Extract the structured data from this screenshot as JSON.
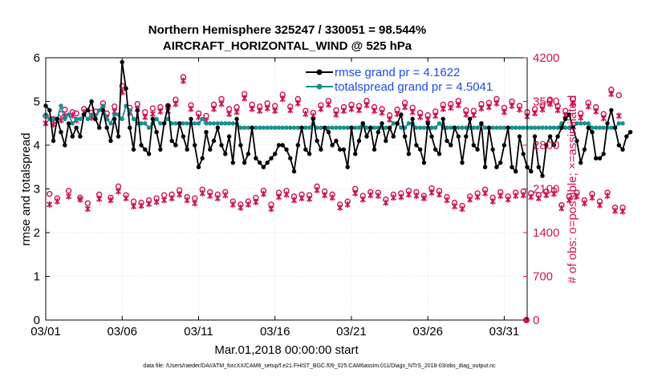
{
  "chart_data": {
    "type": "line",
    "title_line1": "Northern Hemisphere 325247 / 330051 = 98.544%",
    "title_line2": "AIRCRAFT_HORIZONTAL_WIND @ 525 hPa",
    "xlabel": "Mar.01,2018 00:00:00 start",
    "ylabel_left": "rmse and totalspread",
    "ylabel_right": "# of obs: o=possible; ×=assimilated",
    "footer": "data file: /Users/raeder/DAI/ATM_forcXX/CAM6_setup/f.e21.FHIST_BGC.f09_025.CAM6assim.011/Diags_NTrS_2018-03/obs_diag_output.nc",
    "xlim_days": [
      0,
      31.5
    ],
    "ylim_left": [
      0,
      6
    ],
    "ylim_right": [
      0,
      4200
    ],
    "x_ticks": [
      {
        "day": 0,
        "label": "03/01"
      },
      {
        "day": 5,
        "label": "03/06"
      },
      {
        "day": 10,
        "label": "03/11"
      },
      {
        "day": 15,
        "label": "03/16"
      },
      {
        "day": 20,
        "label": "03/21"
      },
      {
        "day": 25,
        "label": "03/26"
      },
      {
        "day": 30,
        "label": "03/31"
      }
    ],
    "y_ticks_left": [
      "0",
      "1",
      "2",
      "3",
      "4",
      "5",
      "6"
    ],
    "y_ticks_right": [
      "0",
      "700",
      "1400",
      "2100",
      "2800",
      "3500",
      "4200"
    ],
    "colors": {
      "rmse": "#000000",
      "spread": "#159090",
      "obs": "#cc1155",
      "legend_text": "#1a4de6"
    },
    "series": [
      {
        "name": "rmse",
        "legend": "rmse grand pr = 4.1622",
        "start_day": 0.0,
        "step_days": 0.25,
        "values": [
          4.9,
          4.8,
          4.1,
          4.6,
          4.3,
          4.0,
          4.5,
          4.2,
          4.4,
          4.2,
          4.7,
          4.8,
          5.0,
          4.6,
          4.4,
          4.8,
          4.4,
          4.1,
          4.6,
          4.2,
          5.9,
          5.3,
          4.4,
          3.9,
          4.8,
          4.0,
          3.9,
          3.8,
          4.6,
          4.3,
          3.9,
          4.5,
          4.9,
          4.1,
          4.0,
          4.5,
          4.2,
          3.9,
          4.6,
          4.0,
          3.5,
          3.7,
          4.3,
          3.9,
          4.1,
          4.4,
          4.0,
          3.8,
          4.2,
          3.6,
          4.6,
          4.0,
          3.6,
          3.8,
          4.4,
          3.7,
          3.6,
          3.5,
          3.6,
          3.7,
          3.8,
          4.0,
          4.0,
          3.9,
          3.7,
          3.4,
          4.0,
          4.4,
          3.9,
          3.8,
          4.6,
          4.1,
          3.9,
          4.4,
          4.3,
          4.0,
          4.1,
          3.9,
          3.9,
          3.5,
          4.4,
          3.8,
          4.1,
          4.5,
          4.2,
          4.4,
          3.9,
          4.3,
          4.5,
          4.1,
          4.4,
          4.2,
          4.5,
          4.7,
          4.2,
          3.8,
          4.6,
          4.0,
          3.9,
          3.6,
          4.5,
          4.2,
          3.9,
          3.8,
          4.6,
          4.1,
          4.0,
          4.4,
          4.2,
          3.6,
          4.2,
          4.6,
          4.0,
          3.9,
          4.5,
          3.5,
          4.4,
          3.9,
          3.5,
          3.6,
          4.0,
          4.4,
          3.5,
          3.4,
          4.2,
          3.8,
          3.5,
          3.4,
          4.2,
          3.5,
          3.3,
          4.0,
          4.2,
          4.0,
          4.2,
          4.4,
          4.6,
          4.7,
          4.4,
          4.1,
          3.6,
          3.9,
          4.4,
          4.3,
          3.7,
          3.7,
          3.8,
          4.5,
          4.8,
          4.4,
          4.0,
          3.9,
          4.2,
          4.3
        ]
      },
      {
        "name": "totalspread",
        "legend": "totalspread grand pr = 4.5041",
        "start_day": 0.0,
        "step_days": 0.25,
        "values": [
          4.7,
          4.6,
          4.6,
          4.6,
          4.9,
          4.6,
          4.7,
          4.5,
          4.6,
          4.6,
          4.7,
          4.6,
          4.7,
          4.6,
          4.8,
          4.9,
          4.6,
          4.5,
          4.7,
          4.7,
          4.6,
          4.9,
          4.8,
          4.6,
          4.5,
          4.5,
          4.5,
          4.4,
          4.5,
          4.6,
          4.5,
          4.5,
          4.6,
          4.5,
          4.5,
          4.5,
          4.5,
          4.5,
          4.5,
          4.5,
          4.5,
          4.6,
          4.5,
          4.5,
          4.5,
          4.5,
          4.5,
          4.5,
          4.5,
          4.5,
          4.5,
          4.4,
          4.4,
          4.4,
          4.4,
          4.4,
          4.4,
          4.4,
          4.4,
          4.4,
          4.4,
          4.4,
          4.4,
          4.4,
          4.4,
          4.4,
          4.4,
          4.4,
          4.4,
          4.4,
          4.5,
          4.4,
          4.4,
          4.4,
          4.4,
          4.4,
          4.4,
          4.4,
          4.4,
          4.4,
          4.4,
          4.4,
          4.4,
          4.5,
          4.4,
          4.4,
          4.4,
          4.4,
          4.4,
          4.4,
          4.4,
          4.5,
          4.5,
          4.4,
          4.4,
          4.5,
          4.5,
          4.4,
          4.4,
          4.4,
          4.4,
          4.4,
          4.4,
          4.5,
          4.4,
          4.4,
          4.4,
          4.4,
          4.4,
          4.4,
          4.4,
          4.4,
          4.4,
          4.4,
          4.5,
          4.4,
          4.4,
          4.4,
          4.4,
          4.4,
          4.4,
          4.4,
          4.4,
          4.4,
          4.4,
          4.4,
          4.4,
          4.4,
          4.4,
          4.4,
          4.4,
          4.4,
          4.4,
          4.4,
          4.4,
          4.5,
          4.4,
          4.4,
          4.4,
          4.5,
          4.5,
          4.5,
          4.5,
          4.4,
          4.4,
          4.4,
          4.4,
          4.4,
          4.4,
          4.4,
          4.5,
          4.5
        ]
      },
      {
        "name": "obs_possible",
        "axis": "right",
        "marker": "circle",
        "start_day": 0.0,
        "step_days": 0.25,
        "values": [
          3270,
          2020,
          3220,
          1950,
          3300,
          3370,
          2070,
          3330,
          3310,
          1960,
          3380,
          1870,
          3320,
          3340,
          2010,
          3470,
          3310,
          1960,
          3420,
          2140,
          3750,
          2000,
          3400,
          1900,
          3460,
          1880,
          3330,
          1920,
          3390,
          1950,
          3410,
          2000,
          3430,
          2010,
          3530,
          2080,
          3890,
          1970,
          3440,
          1950,
          3310,
          2090,
          3270,
          2050,
          3450,
          2010,
          3540,
          2050,
          3380,
          1900,
          3410,
          1850,
          3620,
          1900,
          3450,
          1960,
          3420,
          2070,
          3470,
          1850,
          3430,
          2040,
          3610,
          2070,
          3420,
          1980,
          3540,
          2010,
          3350,
          2000,
          3320,
          2140,
          3440,
          2060,
          3510,
          2010,
          3360,
          1850,
          3410,
          1900,
          3450,
          2100,
          3430,
          1990,
          3510,
          2050,
          3410,
          2040,
          3380,
          1930,
          3280,
          2010,
          3370,
          2030,
          3480,
          2070,
          3400,
          2050,
          3320,
          1990,
          3280,
          2110,
          3340,
          2070,
          3450,
          1970,
          3460,
          1880,
          3510,
          1830,
          3360,
          1980,
          3350,
          2030,
          3460,
          2090,
          3480,
          1960,
          3540,
          2050,
          3400,
          1980,
          3500,
          2040,
          3430,
          2060,
          3330,
          2030,
          3380,
          2000,
          3440,
          2060,
          3530,
          2080,
          3430,
          1840,
          3350,
          1980,
          3540,
          2040,
          3310,
          1920,
          3480,
          2020,
          3410,
          1900,
          3300,
          2040,
          3690,
          1800,
          3600,
          1800
        ]
      },
      {
        "name": "obs_assimilated",
        "axis": "right",
        "marker": "x",
        "start_day": 0.0,
        "step_days": 0.25,
        "values": [
          3150,
          1850,
          3130,
          1900,
          3200,
          3270,
          1980,
          3280,
          3200,
          1930,
          3330,
          1780,
          3240,
          3250,
          1940,
          3380,
          3240,
          1920,
          3340,
          2060,
          3650,
          1950,
          3320,
          1820,
          3380,
          1830,
          3250,
          1860,
          3300,
          1890,
          3340,
          1920,
          3350,
          1950,
          3460,
          2010,
          3830,
          1920,
          3380,
          1870,
          3250,
          2030,
          3190,
          1990,
          3380,
          1950,
          3460,
          2000,
          3300,
          1850,
          3330,
          1800,
          3550,
          1850,
          3380,
          1890,
          3350,
          2020,
          3390,
          1780,
          3350,
          1970,
          3540,
          2010,
          3360,
          1920,
          3470,
          1950,
          3300,
          1940,
          3270,
          2080,
          3380,
          2000,
          3450,
          1960,
          3290,
          1800,
          3350,
          1850,
          3380,
          2030,
          3360,
          1930,
          3440,
          2000,
          3350,
          1990,
          3320,
          1880,
          3210,
          1960,
          3300,
          1970,
          3410,
          2010,
          3330,
          1990,
          3250,
          1950,
          3210,
          2040,
          3270,
          2010,
          3380,
          1920,
          3400,
          1820,
          3440,
          1780,
          3290,
          1930,
          3280,
          1970,
          3390,
          2030,
          3410,
          1900,
          3470,
          1990,
          3330,
          1930,
          3430,
          1990,
          3370,
          2000,
          3260,
          1970,
          3310,
          1950,
          3370,
          2000,
          3460,
          2020,
          3360,
          1790,
          3280,
          1920,
          3470,
          1980,
          3240,
          1870,
          3420,
          1960,
          3340,
          1840,
          3230,
          1990,
          3620,
          1750,
          3270,
          1740
        ]
      }
    ]
  }
}
